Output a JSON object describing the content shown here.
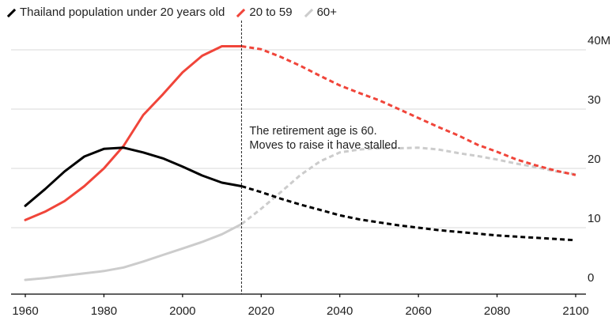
{
  "chart_data": {
    "type": "line",
    "title": "",
    "xlabel": "",
    "ylabel": "",
    "xlim": [
      1957,
      2103
    ],
    "ylim": [
      0,
      44
    ],
    "x_ticks": [
      1960,
      1980,
      2000,
      2020,
      2040,
      2060,
      2080,
      2100
    ],
    "x_tick_labels": [
      "1960",
      "1980",
      "2000",
      "2020",
      "2040",
      "2060",
      "2080",
      "2100"
    ],
    "y_ticks": [
      0,
      10,
      20,
      30,
      40
    ],
    "y_tick_labels": [
      "0",
      "10",
      "20",
      "30",
      "40M"
    ],
    "grid": "horizontal",
    "legend_position": "top-left",
    "projection_start": 2015,
    "series": [
      {
        "name": "Thailand population under 20 years old",
        "color": "#000000",
        "x": [
          1960,
          1965,
          1970,
          1975,
          1980,
          1985,
          1990,
          1995,
          2000,
          2005,
          2010,
          2015,
          2020,
          2025,
          2030,
          2035,
          2040,
          2045,
          2050,
          2055,
          2060,
          2065,
          2070,
          2075,
          2080,
          2085,
          2090,
          2095,
          2100
        ],
        "values": [
          13.7,
          16.5,
          19.5,
          22.0,
          23.3,
          23.5,
          22.7,
          21.7,
          20.3,
          18.8,
          17.6,
          17.0,
          16.0,
          14.9,
          13.9,
          13.0,
          12.1,
          11.4,
          10.9,
          10.4,
          10.0,
          9.6,
          9.3,
          9.0,
          8.7,
          8.5,
          8.3,
          8.1,
          7.9
        ]
      },
      {
        "name": "20 to 59",
        "color": "#f0453a",
        "x": [
          1960,
          1965,
          1970,
          1975,
          1980,
          1985,
          1990,
          1995,
          2000,
          2005,
          2010,
          2015,
          2020,
          2025,
          2030,
          2035,
          2040,
          2045,
          2050,
          2055,
          2060,
          2065,
          2070,
          2075,
          2080,
          2085,
          2090,
          2095,
          2100
        ],
        "values": [
          11.3,
          12.7,
          14.5,
          17.0,
          20.0,
          23.8,
          29.0,
          32.5,
          36.2,
          39.0,
          40.6,
          40.6,
          40.1,
          38.8,
          37.3,
          35.6,
          34.0,
          32.7,
          31.5,
          30.0,
          28.5,
          27.0,
          25.6,
          24.0,
          22.8,
          21.5,
          20.5,
          19.6,
          18.9
        ]
      },
      {
        "name": "60+",
        "color": "#cccccc",
        "x": [
          1960,
          1965,
          1970,
          1975,
          1980,
          1985,
          1990,
          1995,
          2000,
          2005,
          2010,
          2015,
          2020,
          2025,
          2030,
          2035,
          2040,
          2045,
          2050,
          2055,
          2060,
          2065,
          2070,
          2075,
          2080,
          2085,
          2090,
          2095,
          2100
        ],
        "values": [
          1.2,
          1.5,
          1.9,
          2.3,
          2.7,
          3.3,
          4.3,
          5.4,
          6.5,
          7.6,
          8.9,
          10.6,
          13.2,
          16.0,
          18.9,
          21.2,
          22.7,
          23.2,
          23.4,
          23.4,
          23.5,
          23.2,
          22.6,
          22.1,
          21.5,
          20.8,
          20.2,
          19.5,
          19.0
        ]
      }
    ],
    "annotations": [
      {
        "lines": [
          "The retirement age is 60.",
          "Moves to raise it have stalled."
        ]
      }
    ]
  }
}
